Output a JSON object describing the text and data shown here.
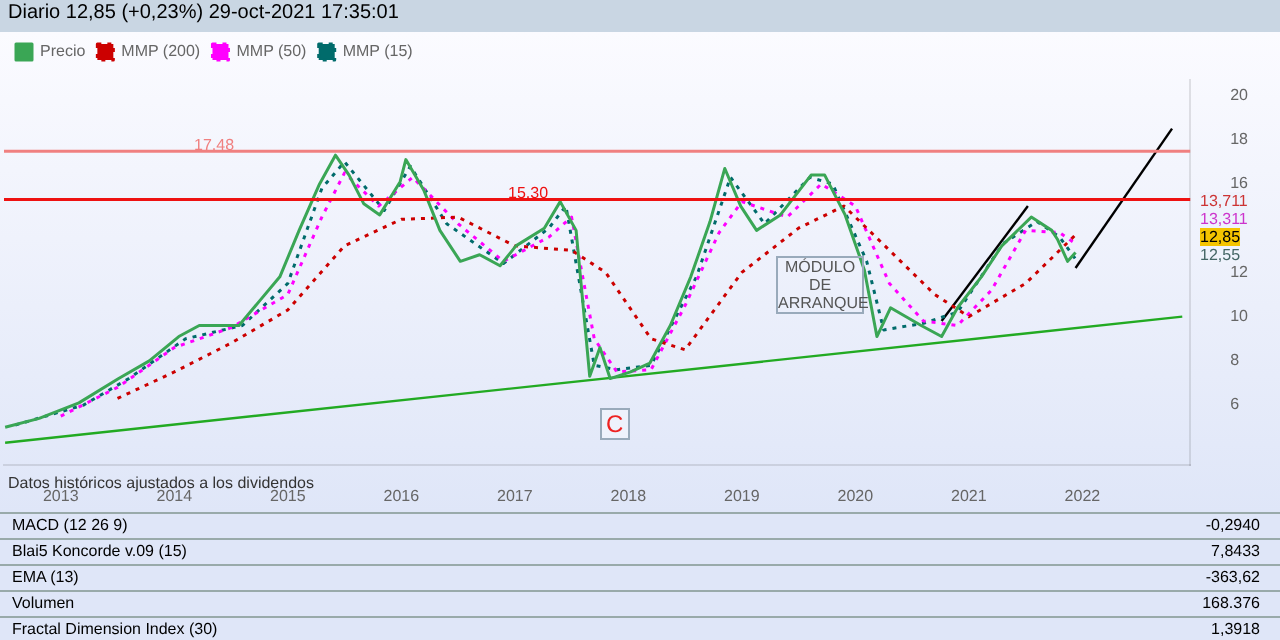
{
  "chart_data": [
    {
      "type": "line",
      "title": "Diario 12,85 (+0,23%) 29-oct-2021 17:35:01",
      "legend": "top left",
      "xlim": [
        2012.5,
        2022.95
      ],
      "xticks": [
        2013,
        2014,
        2015,
        2016,
        2017,
        2018,
        2019,
        2020,
        2021,
        2022
      ],
      "ylim": [
        3.3,
        20.7
      ],
      "yticks": [
        6,
        8,
        10,
        12,
        16,
        18,
        20
      ],
      "grid": false,
      "marker": "none",
      "series": [
        {
          "name": "Precio",
          "color": "#3aa655",
          "line_style": "solid",
          "x": [
            2012.51,
            2012.81,
            2013.16,
            2013.51,
            2013.78,
            2014.04,
            2014.22,
            2014.57,
            2014.75,
            2014.93,
            2015.1,
            2015.28,
            2015.42,
            2015.54,
            2015.67,
            2015.81,
            2015.99,
            2016.04,
            2016.2,
            2016.34,
            2016.52,
            2016.69,
            2016.87,
            2017.01,
            2017.26,
            2017.4,
            2017.54,
            2017.66,
            2017.75,
            2017.84,
            2018.02,
            2018.19,
            2018.37,
            2018.55,
            2018.72,
            2018.85,
            2018.99,
            2019.13,
            2019.34,
            2019.61,
            2019.73,
            2019.91,
            2020.08,
            2020.19,
            2020.31,
            2020.58,
            2020.76,
            2020.9,
            2021.11,
            2021.29,
            2021.55,
            2021.73,
            2021.78,
            2021.87,
            2021.94
          ],
          "values": [
            5.0,
            5.4,
            6.1,
            7.2,
            8.0,
            9.1,
            9.6,
            9.6,
            10.7,
            11.8,
            13.9,
            16.0,
            17.3,
            16.4,
            15.1,
            14.6,
            16.1,
            17.1,
            15.7,
            13.9,
            12.5,
            12.8,
            12.3,
            13.2,
            14.0,
            15.2,
            13.9,
            7.3,
            8.6,
            7.2,
            7.5,
            7.9,
            9.6,
            11.8,
            14.3,
            16.7,
            15.0,
            13.9,
            14.6,
            16.4,
            16.4,
            14.6,
            12.1,
            9.1,
            10.4,
            9.6,
            9.1,
            10.4,
            11.8,
            13.2,
            14.5,
            13.9,
            13.5,
            12.5,
            12.9
          ]
        },
        {
          "name": "MMP (200)",
          "color": "#cc0000",
          "line_style": "dotted",
          "x": [
            2013.5,
            2014.0,
            2014.5,
            2015.0,
            2015.5,
            2016.0,
            2016.5,
            2017.0,
            2017.5,
            2017.8,
            2018.2,
            2018.5,
            2019.0,
            2019.5,
            2019.9,
            2020.3,
            2020.7,
            2021.0,
            2021.5,
            2021.94
          ],
          "values": [
            6.3,
            7.5,
            8.8,
            10.3,
            13.2,
            14.4,
            14.5,
            13.2,
            13.0,
            12.0,
            9.0,
            8.5,
            12.0,
            14.0,
            15.0,
            13.0,
            11.0,
            10.0,
            11.5,
            13.7
          ]
        },
        {
          "name": "MMP (50)",
          "color": "#ff00ff",
          "line_style": "dotted",
          "x": [
            2013.0,
            2013.5,
            2014.0,
            2014.5,
            2015.0,
            2015.3,
            2015.5,
            2015.8,
            2016.1,
            2016.5,
            2016.9,
            2017.3,
            2017.5,
            2017.7,
            2017.9,
            2018.2,
            2018.5,
            2018.8,
            2019.0,
            2019.4,
            2019.7,
            2020.0,
            2020.3,
            2020.6,
            2020.9,
            2021.2,
            2021.5,
            2021.8,
            2021.94
          ],
          "values": [
            5.5,
            6.8,
            8.6,
            9.5,
            11.0,
            14.5,
            16.5,
            15.0,
            16.3,
            14.2,
            12.5,
            13.6,
            14.5,
            9.0,
            7.5,
            7.6,
            10.5,
            13.8,
            15.2,
            14.5,
            16.0,
            15.0,
            11.5,
            9.8,
            9.6,
            11.2,
            13.9,
            13.8,
            13.3
          ]
        },
        {
          "name": "MMP (15)",
          "color": "#006b6b",
          "line_style": "dotted",
          "x": [
            2012.6,
            2013.2,
            2013.6,
            2014.1,
            2014.6,
            2015.0,
            2015.3,
            2015.5,
            2015.85,
            2016.08,
            2016.4,
            2016.9,
            2017.3,
            2017.45,
            2017.7,
            2017.9,
            2018.2,
            2018.6,
            2018.9,
            2019.2,
            2019.6,
            2019.8,
            2020.1,
            2020.25,
            2020.6,
            2020.9,
            2021.3,
            2021.6,
            2021.8,
            2021.94
          ],
          "values": [
            5.1,
            6.0,
            7.2,
            9.0,
            9.6,
            11.5,
            15.8,
            17.0,
            14.8,
            16.8,
            14.2,
            12.4,
            14.0,
            15.0,
            7.8,
            7.6,
            7.8,
            11.8,
            16.3,
            14.2,
            16.3,
            16.0,
            12.5,
            9.4,
            9.7,
            10.2,
            13.3,
            14.3,
            13.6,
            12.6
          ]
        },
        {
          "color": "#22aa22",
          "line_style": "solid",
          "x": [
            2012.51,
            2022.88
          ],
          "values": [
            4.3,
            10.0
          ]
        },
        {
          "color": "#000000",
          "line_style": "solid",
          "x": [
            2020.76,
            2021.52
          ],
          "values": [
            9.8,
            15.0
          ]
        },
        {
          "color": "#000000",
          "line_style": "solid",
          "x": [
            2021.94,
            2022.79
          ],
          "values": [
            12.2,
            18.5
          ]
        }
      ],
      "ref_lines": [
        {
          "axis": "y",
          "value": 17.48,
          "label": "17,48",
          "color": "#f08080"
        },
        {
          "axis": "y",
          "value": 15.3,
          "label": "15,30",
          "color": "#ee1111"
        }
      ],
      "annotations": [
        "C",
        "MÓDULO DE ARRANQUE",
        "13,711",
        "13,311",
        "12,85",
        "12,55",
        "Datos históricos ajustados a los dividendos"
      ]
    },
    {
      "type": "other",
      "annotations": [
        "MACD (12 26 9)",
        "-0,2940",
        "Blai5 Koncorde v.09 (15)",
        "7,8433",
        "EMA (13)",
        "-363,62",
        "Volumen",
        "168.376",
        "Fractal Dimension Index (30)",
        "1,3918"
      ]
    }
  ]
}
